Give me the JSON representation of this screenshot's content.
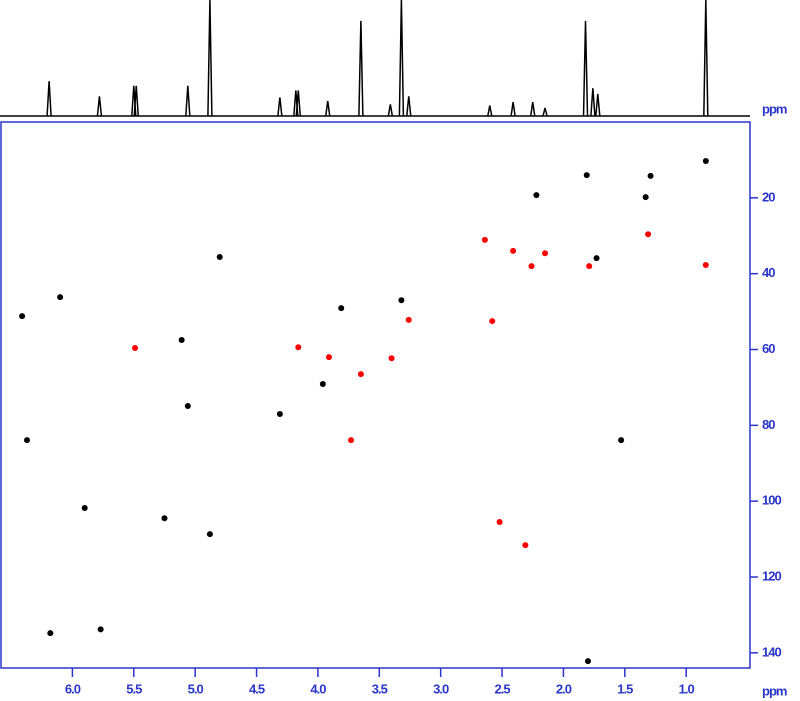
{
  "chart_data": {
    "type": "scatter",
    "x_label": "ppm",
    "y_label": "ppm",
    "xlim": [
      6.59,
      0.48
    ],
    "ylim": [
      0,
      144
    ],
    "xticks": [
      {
        "value": 6.0,
        "label": "6.0"
      },
      {
        "value": 5.5,
        "label": "5.5"
      },
      {
        "value": 5.0,
        "label": "5.0"
      },
      {
        "value": 4.5,
        "label": "4.5"
      },
      {
        "value": 4.0,
        "label": "4.0"
      },
      {
        "value": 3.5,
        "label": "3.5"
      },
      {
        "value": 3.0,
        "label": "3.0"
      },
      {
        "value": 2.5,
        "label": "2.5"
      },
      {
        "value": 2.0,
        "label": "2.0"
      },
      {
        "value": 1.5,
        "label": "1.5"
      },
      {
        "value": 1.0,
        "label": "1.0"
      }
    ],
    "yticks": [
      20,
      40,
      60,
      80,
      100,
      120,
      140
    ],
    "axis_color": "#2a36c8",
    "series": [
      {
        "color": "#000000",
        "x": [
          0.84,
          1.81,
          1.29,
          2.22,
          1.33,
          1.73,
          4.8,
          6.1,
          6.41,
          3.81,
          3.32,
          5.11,
          3.96,
          5.06,
          4.31,
          1.53,
          6.37,
          5.9,
          5.25,
          4.88,
          5.77,
          6.18,
          1.8
        ],
        "values": [
          10.3,
          14.0,
          14.2,
          19.3,
          19.8,
          35.9,
          35.6,
          46.2,
          51.2,
          49.1,
          47.0,
          57.5,
          69.1,
          74.9,
          77.0,
          83.9,
          83.9,
          101.8,
          104.5,
          108.7,
          133.8,
          134.8,
          142.2
        ]
      },
      {
        "color": "#ff0000",
        "x": [
          2.64,
          2.41,
          2.15,
          2.26,
          1.79,
          1.31,
          0.84,
          3.26,
          2.58,
          5.49,
          4.16,
          3.91,
          3.4,
          3.65,
          3.73,
          2.52,
          2.31
        ],
        "values": [
          31.1,
          34.0,
          34.6,
          38.0,
          38.0,
          29.6,
          37.7,
          52.2,
          52.5,
          59.6,
          59.4,
          62.0,
          62.3,
          66.5,
          83.9,
          105.5,
          111.6
        ]
      }
    ],
    "projection": {
      "color": "#000000",
      "ylim": [
        0,
        100
      ],
      "x": [
        6.19,
        5.78,
        5.5,
        5.48,
        5.06,
        4.88,
        4.31,
        4.18,
        4.16,
        3.92,
        3.65,
        3.41,
        3.32,
        3.26,
        2.6,
        2.41,
        2.25,
        2.15,
        1.82,
        1.76,
        1.72,
        0.84
      ],
      "values": [
        30,
        17,
        26,
        26,
        26,
        100,
        16,
        22,
        22,
        13,
        82,
        10,
        100,
        17,
        9,
        12,
        12,
        7,
        82,
        24,
        19,
        100
      ]
    }
  }
}
